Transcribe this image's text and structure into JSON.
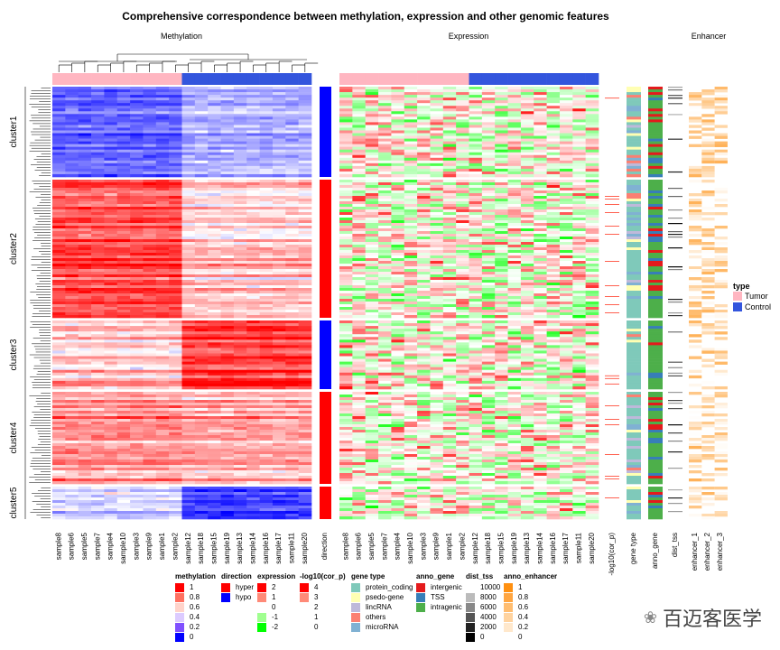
{
  "chart_data": {
    "type": "heatmap",
    "title": "Comprehensive correspondence between methylation, expression and other genomic features",
    "panels": {
      "methylation": "Methylation",
      "expression": "Expression",
      "enhancer": "Enhancer"
    },
    "columns": [
      "sample8",
      "sample6",
      "sample5",
      "sample7",
      "sample4",
      "sample10",
      "sample3",
      "sample9",
      "sample1",
      "sample2",
      "sample12",
      "sample18",
      "sample15",
      "sample19",
      "sample13",
      "sample14",
      "sample16",
      "sample17",
      "sample11",
      "sample20"
    ],
    "column_type": [
      "Tumor",
      "Tumor",
      "Tumor",
      "Tumor",
      "Tumor",
      "Tumor",
      "Tumor",
      "Tumor",
      "Tumor",
      "Tumor",
      "Control",
      "Control",
      "Control",
      "Control",
      "Control",
      "Control",
      "Control",
      "Control",
      "Control",
      "Control"
    ],
    "annotation_columns": [
      "direction",
      "-log10(cor_p)",
      "gene type",
      "anno_gene",
      "dist_tss",
      "enhancer_1",
      "enhancer_2",
      "enhancer_3"
    ],
    "clusters": [
      {
        "name": "cluster1",
        "direction": "hypo",
        "methylation_tumor": 0.2,
        "methylation_control": 0.35
      },
      {
        "name": "cluster2",
        "direction": "hyper",
        "methylation_tumor": 0.85,
        "methylation_control": 0.6
      },
      {
        "name": "cluster3",
        "direction": "hypo",
        "methylation_tumor": 0.62,
        "methylation_control": 0.9
      },
      {
        "name": "cluster4",
        "direction": "hyper",
        "methylation_tumor": 0.72,
        "methylation_control": 0.68
      },
      {
        "name": "cluster5",
        "direction": "hyper",
        "methylation_tumor": 0.4,
        "methylation_control": 0.1
      }
    ]
  },
  "colors": {
    "tumor": "#FFB6C1",
    "control": "#3355DD",
    "hyper": "#FF0000",
    "hypo": "#0000FF"
  },
  "legends": [
    {
      "title": "methylation",
      "items": [
        {
          "label": "1",
          "color": "#FF0000"
        },
        {
          "label": "0.8",
          "color": "#FF7060"
        },
        {
          "label": "0.6",
          "color": "#FFD3CA"
        },
        {
          "label": "0.4",
          "color": "#DCCBFF"
        },
        {
          "label": "0.2",
          "color": "#8050FF"
        },
        {
          "label": "0",
          "color": "#0000FF"
        }
      ]
    },
    {
      "title": "direction",
      "items": [
        {
          "label": "hyper",
          "color": "#FF0000"
        },
        {
          "label": "hypo",
          "color": "#0000FF"
        }
      ]
    },
    {
      "title": "expression",
      "items": [
        {
          "label": "2",
          "color": "#FF0000"
        },
        {
          "label": "1",
          "color": "#FF8A78"
        },
        {
          "label": "0",
          "color": "#FFFFFF"
        },
        {
          "label": "-1",
          "color": "#A0FF90"
        },
        {
          "label": "-2",
          "color": "#00FF00"
        }
      ]
    },
    {
      "title": "-log10(cor_p)",
      "items": [
        {
          "label": "4",
          "color": "#FF0000"
        },
        {
          "label": "3",
          "color": "#FF8A78"
        },
        {
          "label": "2",
          "color": "#FFFFFF"
        },
        {
          "label": "1",
          "color": "#FFFFFF"
        },
        {
          "label": "0",
          "color": "#FFFFFF"
        }
      ]
    },
    {
      "title": "gene type",
      "items": [
        {
          "label": "protein_coding",
          "color": "#7FC9BA"
        },
        {
          "label": "psedo-gene",
          "color": "#FFFFB3"
        },
        {
          "label": "lincRNA",
          "color": "#BEB9DA"
        },
        {
          "label": "others",
          "color": "#FB8072"
        },
        {
          "label": "microRNA",
          "color": "#80B1D3"
        }
      ]
    },
    {
      "title": "anno_gene",
      "items": [
        {
          "label": "intergenic",
          "color": "#E41A1C"
        },
        {
          "label": "TSS",
          "color": "#377EB8"
        },
        {
          "label": "intragenic",
          "color": "#4DAF4A"
        }
      ]
    },
    {
      "title": "dist_tss",
      "items": [
        {
          "label": "10000",
          "color": "#FFFFFF"
        },
        {
          "label": "8000",
          "color": "#BBBBBB"
        },
        {
          "label": "6000",
          "color": "#888888"
        },
        {
          "label": "4000",
          "color": "#555555"
        },
        {
          "label": "2000",
          "color": "#222222"
        },
        {
          "label": "0",
          "color": "#000000"
        }
      ]
    },
    {
      "title": "anno_enhancer",
      "items": [
        {
          "label": "1",
          "color": "#FF9010"
        },
        {
          "label": "0.8",
          "color": "#FFA540"
        },
        {
          "label": "0.6",
          "color": "#FFBD70"
        },
        {
          "label": "0.4",
          "color": "#FFD39F"
        },
        {
          "label": "0.2",
          "color": "#FFE8CC"
        },
        {
          "label": "0",
          "color": "#FFFFFF"
        }
      ]
    }
  ],
  "type_legend": {
    "title": "type",
    "items": [
      {
        "label": "Tumor",
        "color": "#FFB6C1"
      },
      {
        "label": "Control",
        "color": "#3355DD"
      }
    ]
  },
  "watermark": "百迈客医学"
}
